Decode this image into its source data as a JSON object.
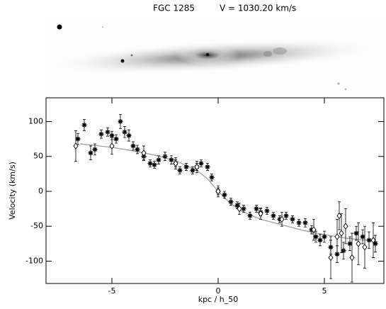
{
  "chart_data": {
    "type": "scatter",
    "title": "FGC 1285",
    "subtitle": "V = 1030.20 km/s",
    "xlabel": "kpc / h_50",
    "ylabel": "Velocity (km/s)",
    "xlim": [
      -8.1,
      7.8
    ],
    "ylim": [
      -132,
      134
    ],
    "xticks": [
      -5,
      0,
      5
    ],
    "yticks": [
      -100,
      -50,
      0,
      50,
      100
    ],
    "series": [
      {
        "marker": "asterisk",
        "color": "#000000",
        "x": [
          -6.6,
          -6.3,
          -6.0,
          -5.8,
          -5.5,
          -5.2,
          -5.0,
          -4.8,
          -4.6,
          -4.4,
          -4.2,
          -4.0,
          -3.8,
          -3.5,
          -3.2,
          -3.0,
          -2.8,
          -2.5,
          -2.2,
          -2.0,
          -1.8,
          -1.5,
          -1.2,
          -1.0,
          -0.8,
          -0.5,
          -0.3,
          0.0,
          0.3,
          0.6,
          0.9,
          1.2,
          1.5,
          1.8,
          2.0,
          2.3,
          2.6,
          2.9,
          3.2,
          3.5,
          3.8,
          4.1,
          4.4,
          4.6,
          4.8,
          5.0,
          5.3,
          5.6,
          5.9,
          6.2,
          6.5,
          6.8,
          7.1,
          7.4
        ],
        "values": [
          75,
          95,
          55,
          60,
          82,
          85,
          80,
          75,
          100,
          85,
          80,
          65,
          60,
          50,
          40,
          38,
          45,
          50,
          45,
          40,
          30,
          35,
          30,
          35,
          40,
          35,
          20,
          0,
          -5,
          -15,
          -20,
          -25,
          -35,
          -25,
          -30,
          -28,
          -35,
          -40,
          -35,
          -40,
          -45,
          -45,
          -55,
          -65,
          -70,
          -65,
          -80,
          -90,
          -85,
          -75,
          -60,
          -65,
          -70,
          -75
        ],
        "errors": [
          8,
          8,
          10,
          8,
          6,
          6,
          6,
          6,
          10,
          8,
          8,
          6,
          6,
          6,
          5,
          5,
          6,
          6,
          6,
          5,
          5,
          5,
          5,
          5,
          5,
          5,
          5,
          5,
          5,
          5,
          5,
          5,
          5,
          5,
          5,
          5,
          5,
          5,
          5,
          5,
          5,
          6,
          6,
          8,
          8,
          8,
          10,
          12,
          12,
          10,
          10,
          10,
          12,
          12
        ]
      },
      {
        "marker": "diamond",
        "color": "#000000",
        "x": [
          -6.7,
          -5.0,
          -3.5,
          -2.0,
          -1.0,
          0.0,
          1.0,
          2.0,
          3.0,
          4.5,
          5.3,
          5.6,
          5.8,
          6.0,
          6.3,
          6.6,
          6.9,
          7.3,
          5.7
        ],
        "values": [
          65,
          65,
          55,
          40,
          35,
          0,
          -25,
          -32,
          -40,
          -55,
          -95,
          -65,
          -60,
          -50,
          -95,
          -75,
          -80,
          -70,
          -35
        ],
        "errors": [
          22,
          12,
          10,
          8,
          8,
          8,
          8,
          8,
          10,
          15,
          30,
          25,
          28,
          25,
          35,
          30,
          30,
          25,
          20
        ]
      }
    ],
    "curve": {
      "color": "#999999",
      "x": [
        -6.5,
        -5,
        -4,
        -3,
        -2,
        -1,
        -0.5,
        0,
        0.5,
        1,
        2,
        3,
        4,
        5,
        6,
        7,
        7.5
      ],
      "values": [
        68,
        63,
        58,
        52,
        44,
        30,
        18,
        0,
        -15,
        -27,
        -40,
        -48,
        -56,
        -62,
        -67,
        -70,
        -72
      ]
    }
  }
}
